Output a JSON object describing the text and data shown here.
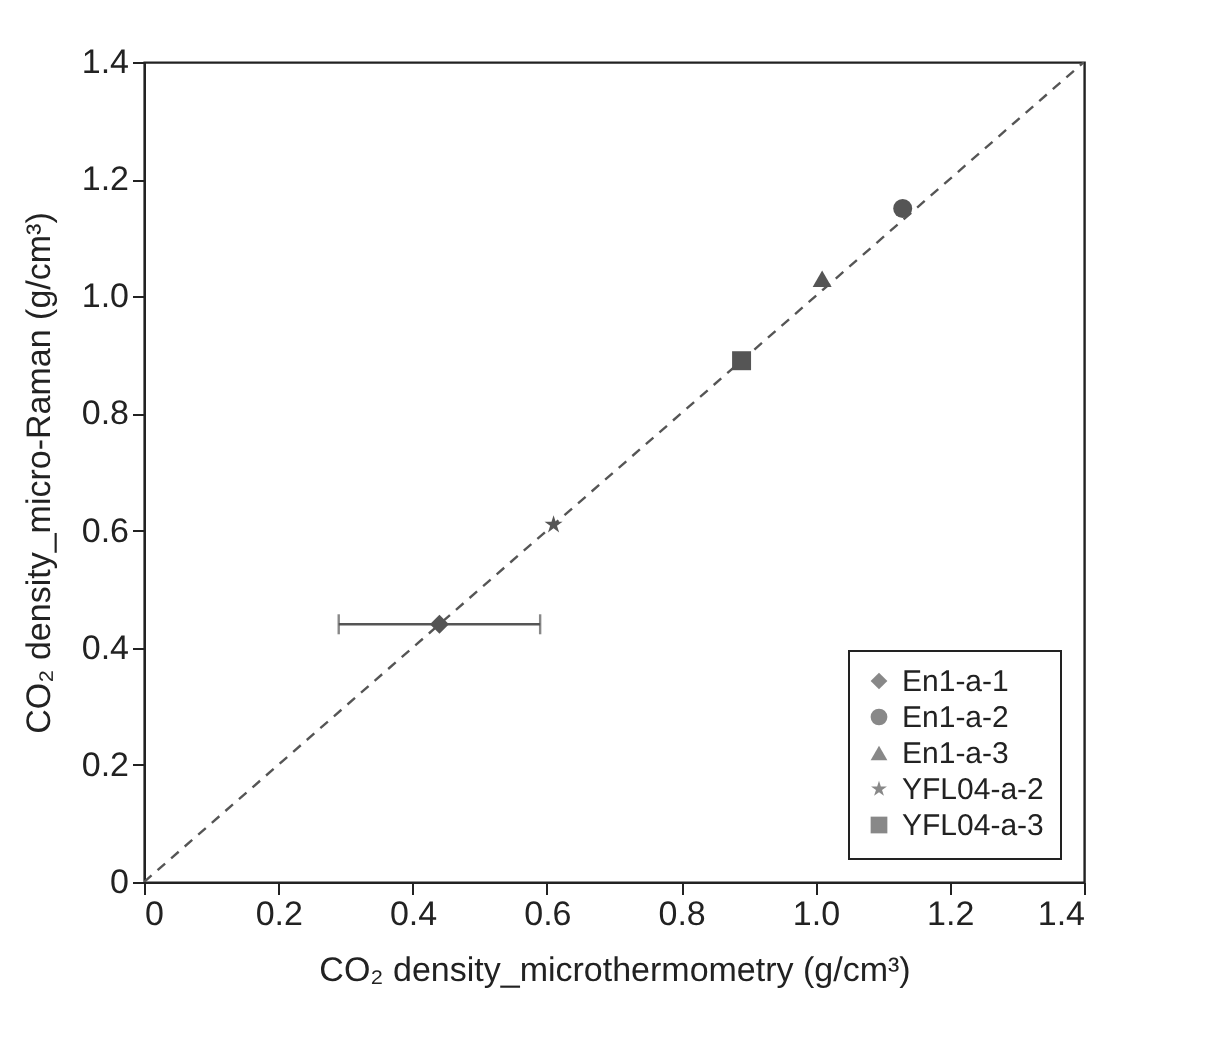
{
  "chart_data": {
    "type": "scatter",
    "xlabel": "CO₂ density_microthermometry (g/cm³)",
    "ylabel": "CO₂ density_micro-Raman (g/cm³)",
    "xlim": [
      0,
      1.4
    ],
    "ylim": [
      0,
      1.4
    ],
    "xticks": [
      0,
      0.2,
      0.4,
      0.6,
      0.8,
      {
        "value": 1,
        "label": "1.0"
      },
      1.2,
      1.4
    ],
    "yticks": [
      0,
      0.2,
      0.4,
      0.6,
      0.8,
      {
        "value": 1,
        "label": "1.0"
      },
      1.2,
      1.4
    ],
    "grid": false,
    "legend": "bottom right",
    "series": [
      {
        "type": "line",
        "color": "#555555",
        "line_style": "dashed",
        "x": [
          0,
          1.4
        ],
        "values": [
          0,
          1.4
        ]
      },
      {
        "name": "En1-a-1",
        "color": "#555555",
        "marker": "diamond",
        "x": [
          0.44
        ],
        "values": [
          0.44
        ],
        "xerrors": [
          [
            0.29,
            0.59
          ]
        ]
      },
      {
        "name": "En1-a-2",
        "color": "#555555",
        "marker": "circle",
        "x": [
          1.13
        ],
        "values": [
          1.15
        ]
      },
      {
        "name": "En1-a-3",
        "color": "#555555",
        "marker": "triangle",
        "x": [
          1.01
        ],
        "values": [
          1.03
        ]
      },
      {
        "name": "YFL04-a-2",
        "color": "#555555",
        "marker": "star",
        "x": [
          0.61
        ],
        "values": [
          0.61
        ]
      },
      {
        "name": "YFL04-a-3",
        "color": "#555555",
        "marker": "square",
        "x": [
          0.89
        ],
        "values": [
          0.89
        ]
      }
    ]
  }
}
